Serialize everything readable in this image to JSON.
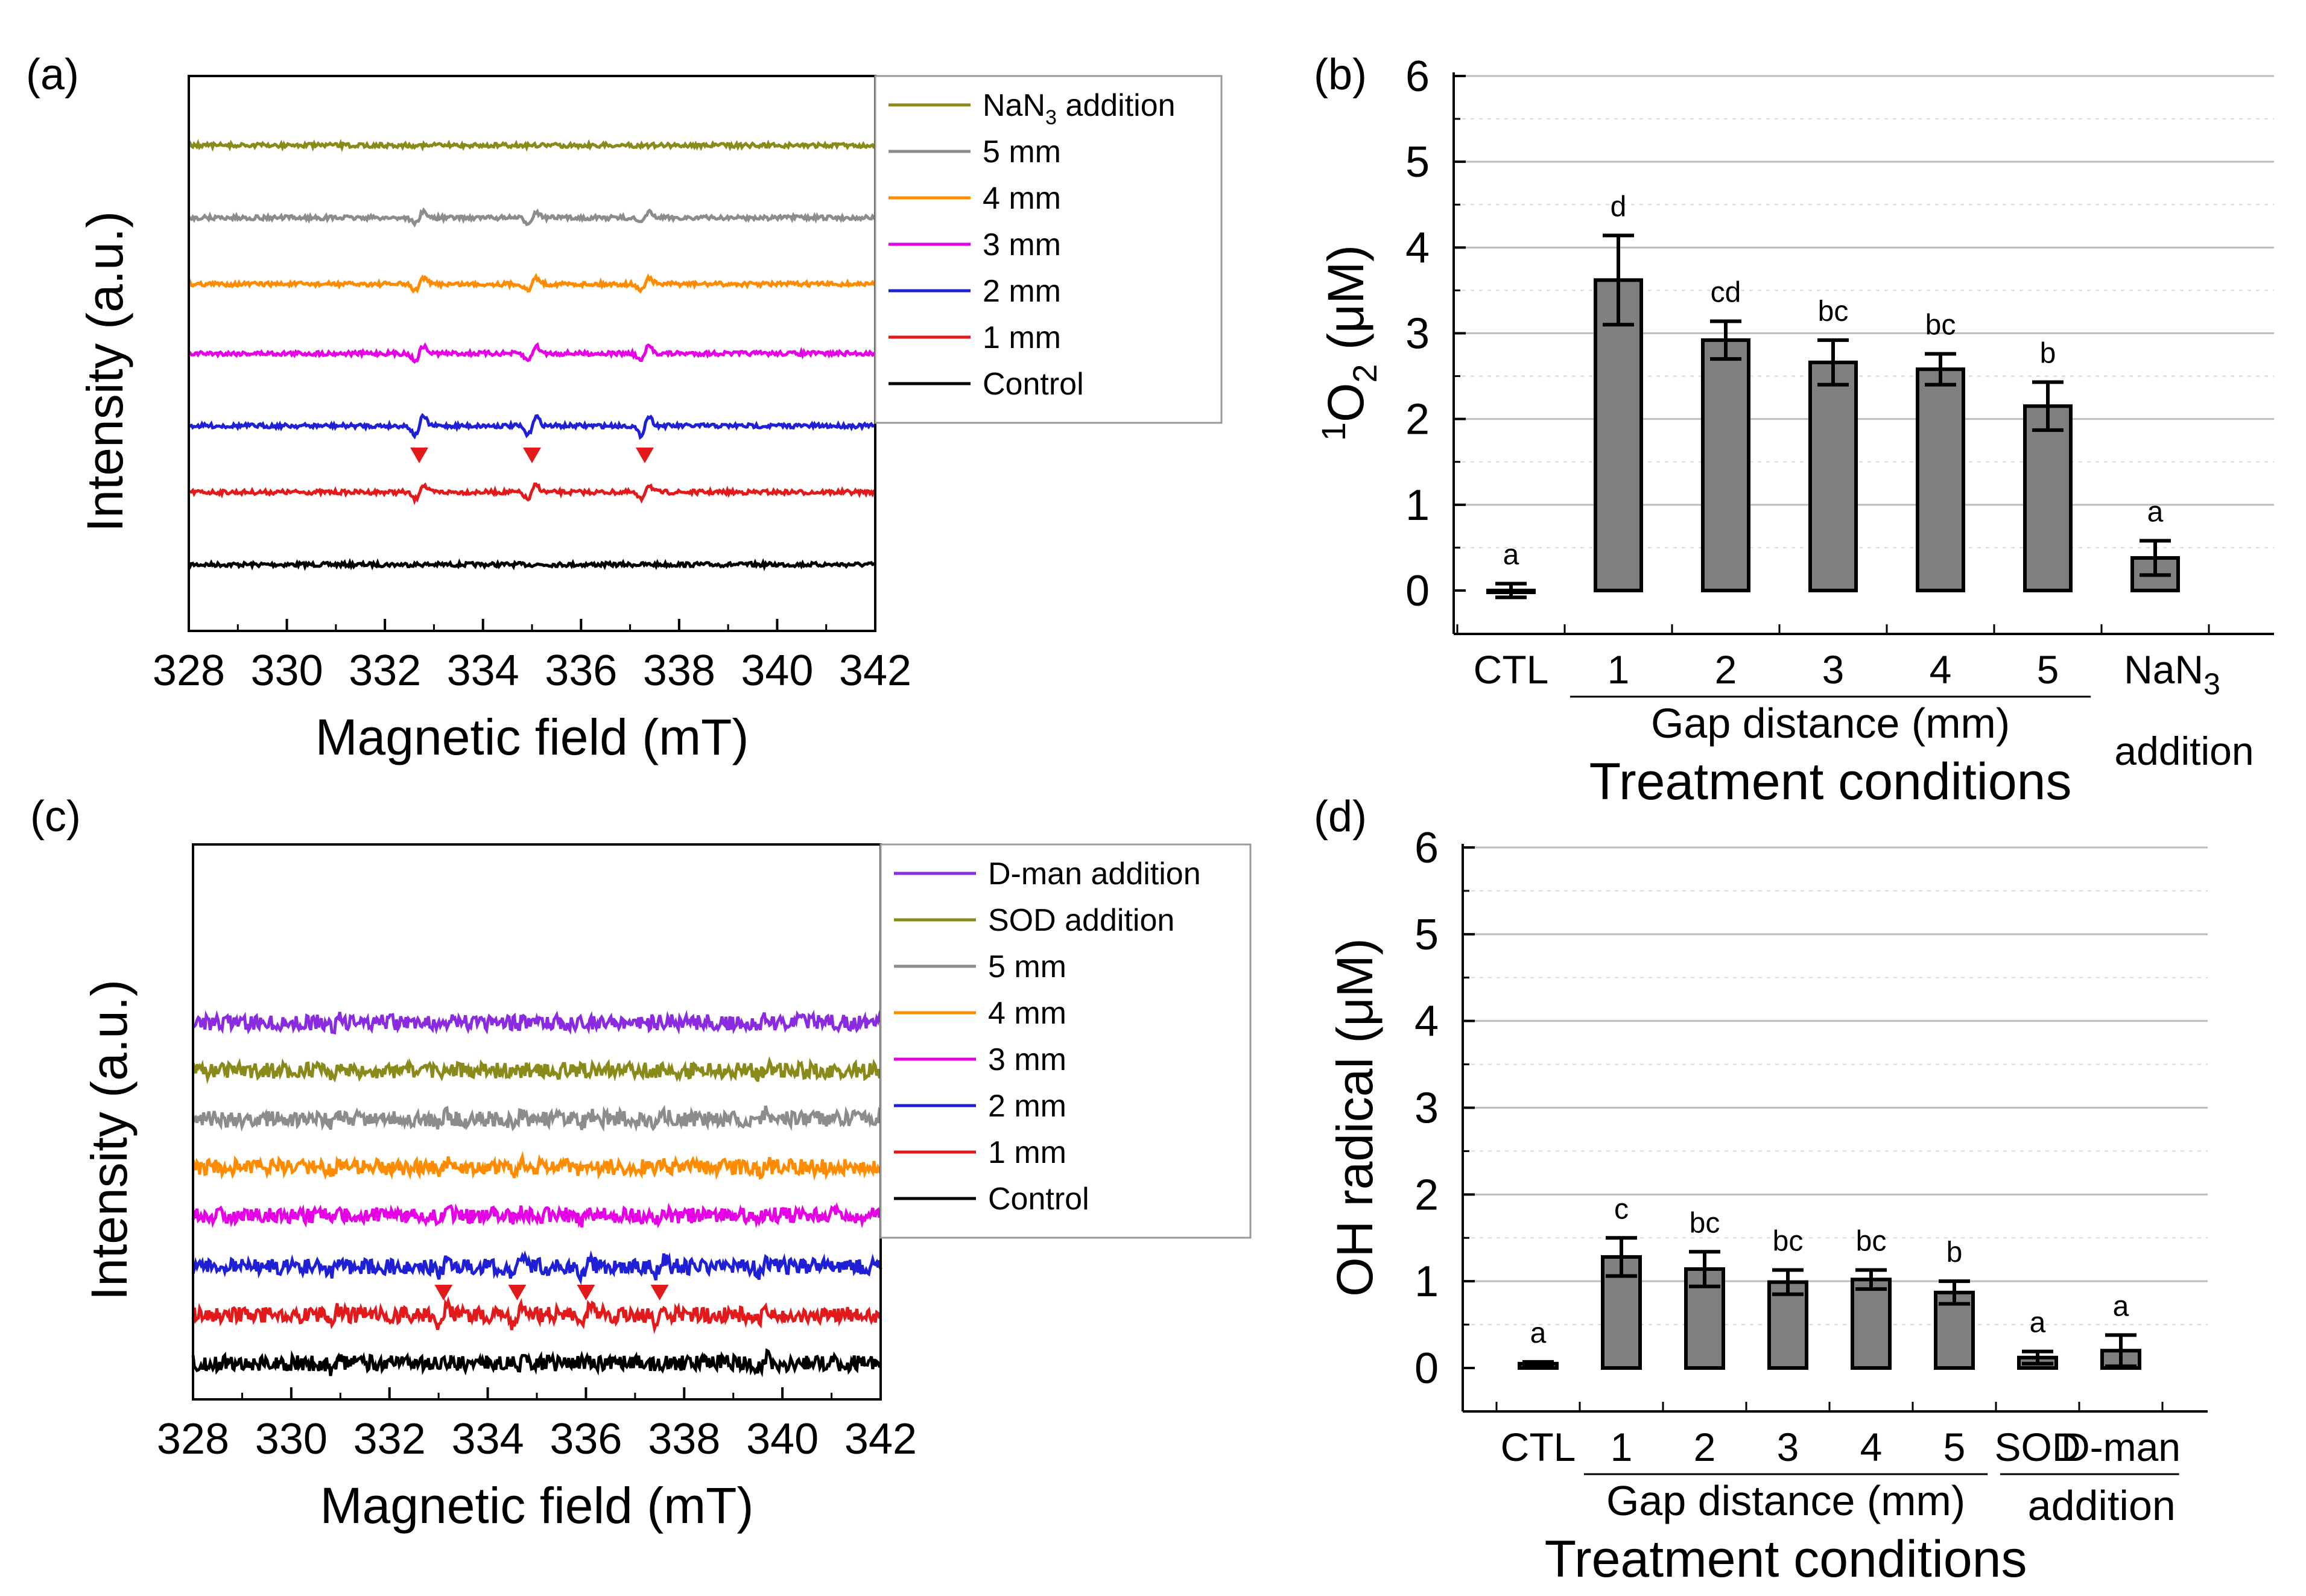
{
  "panels": [
    {
      "label": "(a)",
      "chart_data": {
        "type": "line",
        "title": "",
        "xlabel": "Magnetic field (mT)",
        "ylabel": "Intensity (a.u.)",
        "xlim": [
          328,
          342
        ],
        "xticks": [
          328,
          330,
          332,
          334,
          336,
          338,
          340,
          342
        ],
        "peak_markers_mT": [
          332.7,
          335.0,
          337.3
        ],
        "series": [
          {
            "name": "Control",
            "color": "#000000",
            "peaks_mT": [],
            "peak_amp": 0
          },
          {
            "name": "1 mm",
            "color": "#e31a1c",
            "peaks_mT": [
              332.7,
              335.0,
              337.3
            ],
            "peak_amp": 1.0
          },
          {
            "name": "2 mm",
            "color": "#1f1fd6",
            "peaks_mT": [
              332.7,
              335.0,
              337.3
            ],
            "peak_amp": 1.3
          },
          {
            "name": "3 mm",
            "color": "#e600e6",
            "peaks_mT": [
              332.7,
              335.0,
              337.3
            ],
            "peak_amp": 1.0
          },
          {
            "name": "4 mm",
            "color": "#ff8c00",
            "peaks_mT": [
              332.7,
              335.0,
              337.3
            ],
            "peak_amp": 0.9
          },
          {
            "name": "5 mm",
            "color": "#8c8c8c",
            "peaks_mT": [
              332.7,
              335.0,
              337.3
            ],
            "peak_amp": 0.8
          },
          {
            "name": "NaN",
            "name_sub": "3",
            "name_rest": " addition",
            "color": "#8a8a1a",
            "peaks_mT": [],
            "peak_amp": 0
          }
        ]
      }
    },
    {
      "label": "(b)",
      "chart_data": {
        "type": "bar",
        "title": "",
        "xlabel": "Treatment conditions",
        "ylabel_sup": "1",
        "ylabel_main": "O",
        "ylabel_sub": "2",
        "ylabel_unit": " (μM)",
        "ylim": [
          0,
          6
        ],
        "yticks": [
          0,
          1,
          2,
          3,
          4,
          5,
          6
        ],
        "categories": [
          "CTL",
          "1",
          "2",
          "3",
          "4",
          "5",
          "NaN3 addition"
        ],
        "category_display": [
          {
            "t": "CTL"
          },
          {
            "t": "1"
          },
          {
            "t": "2"
          },
          {
            "t": "3"
          },
          {
            "t": "4"
          },
          {
            "t": "5"
          },
          {
            "t": "NaN",
            "sub": "3",
            "t2": "addition"
          }
        ],
        "values": [
          0.0,
          3.62,
          2.92,
          2.66,
          2.58,
          2.15,
          0.38
        ],
        "errors": [
          0.08,
          0.52,
          0.22,
          0.26,
          0.18,
          0.28,
          0.2
        ],
        "letters": [
          "a",
          "d",
          "cd",
          "bc",
          "bc",
          "b",
          "a"
        ],
        "group_label": "Gap distance (mm)"
      }
    },
    {
      "label": "(c)",
      "chart_data": {
        "type": "line",
        "title": "",
        "xlabel": "Magnetic field (mT)",
        "ylabel": "Intensity (a.u.)",
        "xlim": [
          328,
          342
        ],
        "xticks": [
          328,
          330,
          332,
          334,
          336,
          338,
          340,
          342
        ],
        "peak_markers_mT": [
          333.1,
          334.6,
          336.0,
          337.5
        ],
        "series": [
          {
            "name": "Control",
            "color": "#000000",
            "peaks_mT": [],
            "peak_amp": 0
          },
          {
            "name": "1 mm",
            "color": "#e31a1c",
            "peaks_mT": [
              333.1,
              334.6,
              336.0,
              337.5
            ],
            "peak_amp": 1.2
          },
          {
            "name": "2 mm",
            "color": "#1f1fd6",
            "peaks_mT": [
              333.1,
              334.6,
              336.0,
              337.5
            ],
            "peak_amp": 0.9
          },
          {
            "name": "3 mm",
            "color": "#e600e6",
            "peaks_mT": [
              333.1,
              334.6,
              336.0,
              337.5
            ],
            "peak_amp": 0.6
          },
          {
            "name": "4 mm",
            "color": "#ff8c00",
            "peaks_mT": [
              333.1,
              334.6,
              336.0,
              337.5
            ],
            "peak_amp": 0.6
          },
          {
            "name": "5 mm",
            "color": "#8c8c8c",
            "peaks_mT": [
              333.1,
              334.6,
              336.0,
              337.5
            ],
            "peak_amp": 0.5
          },
          {
            "name": "SOD addition",
            "color": "#8a8a1a",
            "peaks_mT": [],
            "peak_amp": 0
          },
          {
            "name": "D-man addition",
            "color": "#8a2be2",
            "peaks_mT": [],
            "peak_amp": 0
          }
        ]
      }
    },
    {
      "label": "(d)",
      "chart_data": {
        "type": "bar",
        "title": "",
        "xlabel": "Treatment conditions",
        "ylabel": "OH radical (μM)",
        "ylim": [
          0,
          6
        ],
        "yticks": [
          0,
          1,
          2,
          3,
          4,
          5,
          6
        ],
        "categories": [
          "CTL",
          "1",
          "2",
          "3",
          "4",
          "5",
          "SOD",
          "D-man"
        ],
        "category_display": [
          {
            "t": "CTL"
          },
          {
            "t": "1"
          },
          {
            "t": "2"
          },
          {
            "t": "3"
          },
          {
            "t": "4"
          },
          {
            "t": "5"
          },
          {
            "t": "SOD"
          },
          {
            "t": "D-man"
          }
        ],
        "values": [
          0.05,
          1.28,
          1.14,
          0.99,
          1.02,
          0.87,
          0.12,
          0.2
        ],
        "errors": [
          0.02,
          0.22,
          0.2,
          0.14,
          0.11,
          0.13,
          0.07,
          0.18
        ],
        "letters": [
          "a",
          "c",
          "bc",
          "bc",
          "bc",
          "b",
          "a",
          "a"
        ],
        "group_label": "Gap distance (mm)",
        "group_label2": "addition"
      }
    }
  ]
}
